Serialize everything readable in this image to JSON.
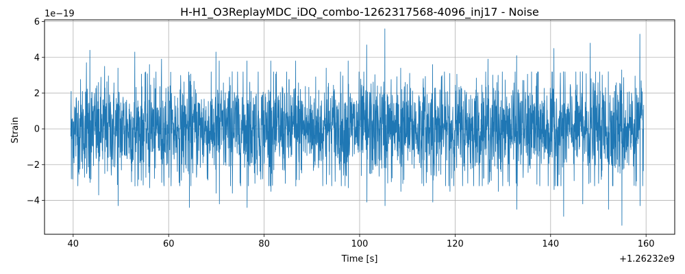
{
  "chart_data": {
    "type": "line",
    "title": "H-H1_O3ReplayMDC_iDQ_combo-1262317568-4096_inj17 - Noise",
    "xlabel": "Time [s]",
    "ylabel": "Strain",
    "x_offset_label": "+1.26232e9",
    "y_scale_label": "1e−19",
    "xlim": [
      34,
      166
    ],
    "ylim": [
      -5.9,
      6.1
    ],
    "x_ticks": [
      40,
      60,
      80,
      100,
      120,
      140,
      160
    ],
    "x_tick_labels": [
      "40",
      "60",
      "80",
      "100",
      "120",
      "140",
      "160"
    ],
    "y_ticks": [
      -4,
      -2,
      0,
      2,
      4,
      6
    ],
    "y_tick_labels": [
      "−4",
      "−2",
      "0",
      "2",
      "4",
      "6"
    ],
    "grid": true,
    "line_color": "#1f77b4",
    "series": [
      {
        "x_range": [
          39.5,
          159.5
        ],
        "extremes": [
          {
            "x": 39.6,
            "max": 2.1,
            "min": -2.8
          },
          {
            "x": 42.8,
            "max": 3.7,
            "min": -2.5
          },
          {
            "x": 43.5,
            "max": 4.4,
            "min": -3.0
          },
          {
            "x": 45.3,
            "max": 2.6,
            "min": -3.7
          },
          {
            "x": 46.6,
            "max": 3.5,
            "min": -2.5
          },
          {
            "x": 49.4,
            "max": 3.4,
            "min": -4.3
          },
          {
            "x": 52.9,
            "max": 4.3,
            "min": -3.2
          },
          {
            "x": 56.0,
            "max": 3.6,
            "min": -3.3
          },
          {
            "x": 58.5,
            "max": 3.9,
            "min": -3.0
          },
          {
            "x": 64.3,
            "max": 3.0,
            "min": -4.4
          },
          {
            "x": 69.9,
            "max": 4.3,
            "min": -3.6
          },
          {
            "x": 70.6,
            "max": 3.8,
            "min": -4.2
          },
          {
            "x": 73.3,
            "max": 3.2,
            "min": -3.6
          },
          {
            "x": 76.4,
            "max": 3.8,
            "min": -4.4
          },
          {
            "x": 81.4,
            "max": 3.8,
            "min": -3.5
          },
          {
            "x": 86.6,
            "max": 3.8,
            "min": -3.2
          },
          {
            "x": 93.0,
            "max": 3.4,
            "min": -3.1
          },
          {
            "x": 97.6,
            "max": 3.8,
            "min": -3.3
          },
          {
            "x": 101.5,
            "max": 4.7,
            "min": -4.1
          },
          {
            "x": 105.3,
            "max": 5.6,
            "min": -4.3
          },
          {
            "x": 108.6,
            "max": 3.4,
            "min": -3.5
          },
          {
            "x": 115.3,
            "max": 3.6,
            "min": -4.1
          },
          {
            "x": 118.9,
            "max": 3.1,
            "min": -3.5
          },
          {
            "x": 126.9,
            "max": 3.9,
            "min": -3.1
          },
          {
            "x": 129.0,
            "max": 3.0,
            "min": -3.5
          },
          {
            "x": 132.9,
            "max": 4.1,
            "min": -4.5
          },
          {
            "x": 137.1,
            "max": 3.1,
            "min": -3.1
          },
          {
            "x": 140.7,
            "max": 4.5,
            "min": -3.4
          },
          {
            "x": 142.7,
            "max": 3.2,
            "min": -4.9
          },
          {
            "x": 146.7,
            "max": 3.2,
            "min": -4.2
          },
          {
            "x": 148.3,
            "max": 4.8,
            "min": -3.0
          },
          {
            "x": 152.1,
            "max": 3.2,
            "min": -4.5
          },
          {
            "x": 154.9,
            "max": 3.3,
            "min": -5.4
          },
          {
            "x": 158.7,
            "max": 5.3,
            "min": -4.3
          }
        ],
        "typical_amplitude": 2.2
      }
    ]
  }
}
